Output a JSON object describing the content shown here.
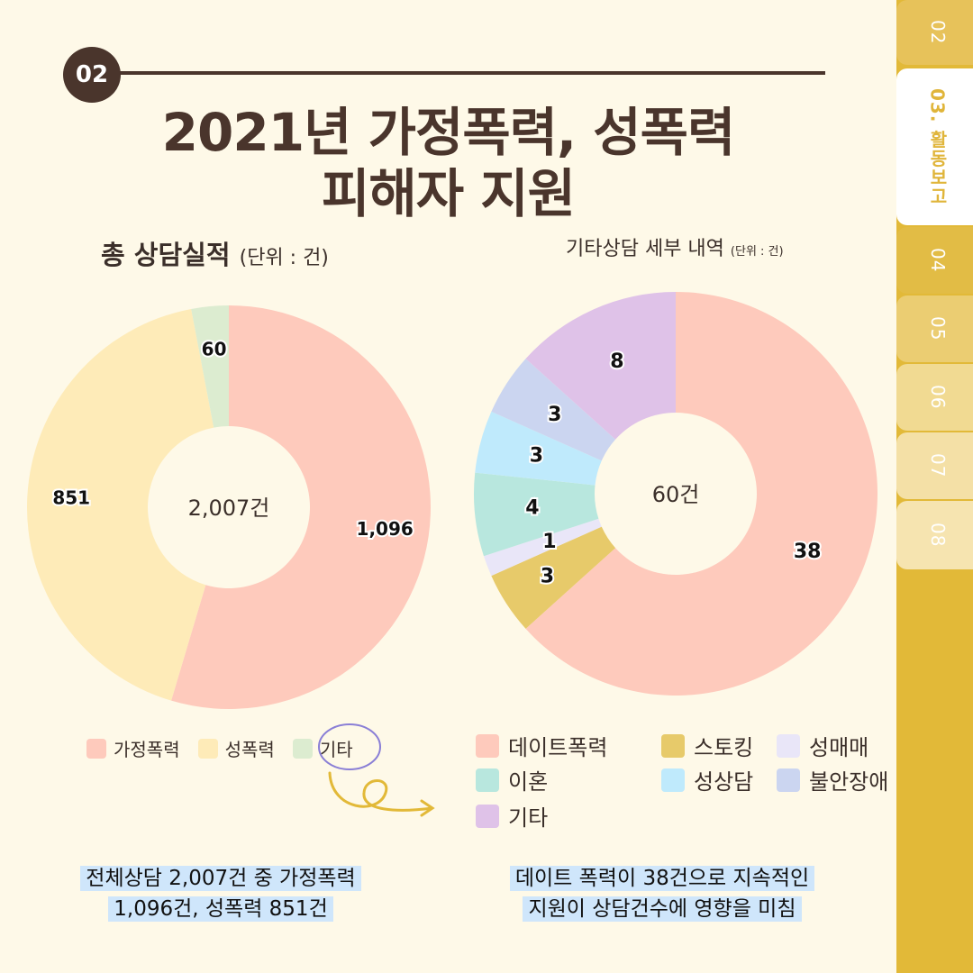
{
  "side_tabs": [
    {
      "label": "02",
      "active": false,
      "color": "#e7c25a"
    },
    {
      "label": "03. 활동보고",
      "active": true,
      "color": "#ffffff"
    },
    {
      "label": "04",
      "active": false,
      "color": "#e2bc45"
    },
    {
      "label": "05",
      "active": false,
      "color": "#ebcd72"
    },
    {
      "label": "06",
      "active": false,
      "color": "#f1da92"
    },
    {
      "label": "07",
      "active": false,
      "color": "#f4e0a6"
    },
    {
      "label": "08",
      "active": false,
      "color": "#f6e4b0"
    }
  ],
  "section_number": "02",
  "title_line1": "2021년 가정폭력, 성폭력",
  "title_line2": "피해자 지원",
  "left_subtitle": "총 상담실적",
  "left_unit": "(단위 : 건)",
  "right_subtitle": "기타상담 세부 내역",
  "right_unit": "(단위 : 건)",
  "chart_data": [
    {
      "type": "pie",
      "donut": true,
      "center_label": "2,007건",
      "labels": [
        "가정폭력",
        "성폭력",
        "기타"
      ],
      "values": [
        1096,
        851,
        60
      ],
      "value_labels": [
        "1,096",
        "851",
        "60"
      ],
      "colors": [
        "#fecabc",
        "#feebb8",
        "#dcecd0"
      ]
    },
    {
      "type": "pie",
      "donut": true,
      "center_label": "60건",
      "labels": [
        "데이트폭력",
        "스토킹",
        "성매매",
        "이혼",
        "성상담",
        "불안장애",
        "기타"
      ],
      "values": [
        38,
        3,
        1,
        4,
        3,
        3,
        8
      ],
      "value_labels": [
        "38",
        "3",
        "1",
        "4",
        "3",
        "3",
        "8"
      ],
      "colors": [
        "#fecabc",
        "#e7ca6a",
        "#e9e6f8",
        "#b8e7de",
        "#bfeafc",
        "#cbd5f0",
        "#dfc2e8"
      ]
    }
  ],
  "left_legend": [
    {
      "label": "가정폭력",
      "color": "#fecabc"
    },
    {
      "label": "성폭력",
      "color": "#feebb8"
    },
    {
      "label": "기타",
      "color": "#dcecd0"
    }
  ],
  "right_legend": [
    {
      "label": "데이트폭력",
      "color": "#fecabc"
    },
    {
      "label": "스토킹",
      "color": "#e7ca6a"
    },
    {
      "label": "성매매",
      "color": "#e9e6f8"
    },
    {
      "label": "이혼",
      "color": "#b8e7de"
    },
    {
      "label": "성상담",
      "color": "#bfeafc"
    },
    {
      "label": "불안장애",
      "color": "#cbd5f0"
    },
    {
      "label": "기타",
      "color": "#dfc2e8"
    }
  ],
  "summary_left_line1": "전체상담 2,007건 중 가정폭력",
  "summary_left_line2": "1,096건, 성폭력 851건",
  "summary_right_line1": "데이트 폭력이 38건으로 지속적인",
  "summary_right_line2": "지원이 상담건수에 영향을 미침",
  "accent_color": "#e2b938",
  "annotation_circle_color": "#8a7fd6",
  "arrow_color": "#e2b938"
}
